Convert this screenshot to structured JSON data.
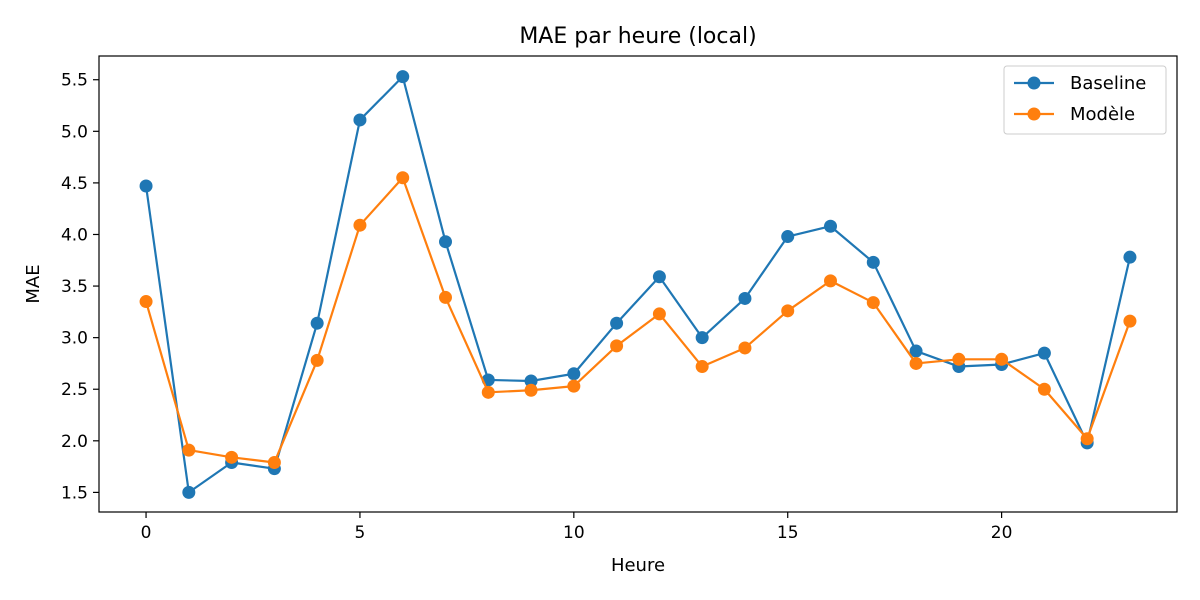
{
  "chart_data": {
    "type": "line",
    "title": "MAE par heure (local)",
    "xlabel": "Heure",
    "ylabel": "MAE",
    "xlim": [
      -1.1,
      24.1
    ],
    "ylim": [
      1.31,
      5.73
    ],
    "xticks": [
      0,
      5,
      10,
      15,
      20
    ],
    "yticks": [
      1.5,
      2.0,
      2.5,
      3.0,
      3.5,
      4.0,
      4.5,
      5.0,
      5.5
    ],
    "ytick_labels": [
      "1.5",
      "2.0",
      "2.5",
      "3.0",
      "3.5",
      "4.0",
      "4.5",
      "5.0",
      "5.5"
    ],
    "grid": false,
    "legend_position": "top-right",
    "x": [
      0,
      1,
      2,
      3,
      4,
      5,
      6,
      7,
      8,
      9,
      10,
      11,
      12,
      13,
      14,
      15,
      16,
      17,
      18,
      19,
      20,
      21,
      22,
      23
    ],
    "series": [
      {
        "name": "Baseline",
        "color": "#1f77b4",
        "marker": "circle",
        "values": [
          4.47,
          1.5,
          1.79,
          1.73,
          3.14,
          5.11,
          5.53,
          3.93,
          2.59,
          2.58,
          2.65,
          3.14,
          3.59,
          3.0,
          3.38,
          3.98,
          4.08,
          3.73,
          2.87,
          2.72,
          2.74,
          2.85,
          1.98,
          3.78
        ]
      },
      {
        "name": "Modèle",
        "color": "#ff7f0e",
        "marker": "circle",
        "values": [
          3.35,
          1.91,
          1.84,
          1.79,
          2.78,
          4.09,
          4.55,
          3.39,
          2.47,
          2.49,
          2.53,
          2.92,
          3.23,
          2.72,
          2.9,
          3.26,
          3.55,
          3.34,
          2.75,
          2.79,
          2.79,
          2.5,
          2.02,
          3.16
        ]
      }
    ]
  }
}
